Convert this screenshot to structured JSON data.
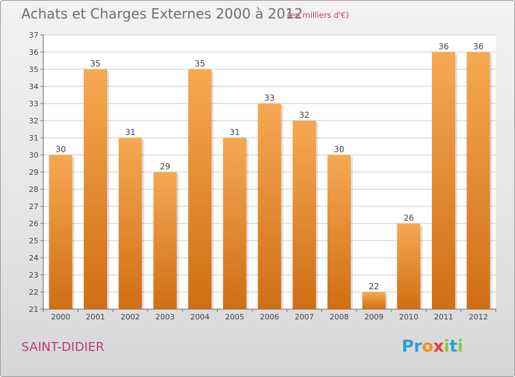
{
  "header": {
    "title": "Achats et Charges Externes 2000 à 2012",
    "subtitle": "(en milliers d'€)"
  },
  "footer": {
    "commune": "SAINT-DIDIER",
    "logo_text": "Proxiti",
    "logo_letters": [
      {
        "char": "P",
        "color": "#2a9fd6"
      },
      {
        "char": "r",
        "color": "#2a9fd6"
      },
      {
        "char": "o",
        "color": "#f28c1b"
      },
      {
        "char": "x",
        "color": "#e63d2f"
      },
      {
        "char": "i",
        "color": "#8dc63f"
      },
      {
        "char": "t",
        "color": "#2a9fd6"
      },
      {
        "char": "i",
        "color": "#8dc63f"
      }
    ]
  },
  "colors": {
    "bar_light": "#f6a952",
    "bar_dark": "#d06e14",
    "grid": "#c8c8c8",
    "accent": "#c0397a"
  },
  "chart_data": {
    "type": "bar",
    "title": "Achats et Charges Externes 2000 à 2012",
    "subtitle": "(en milliers d'€)",
    "categories": [
      "2000",
      "2001",
      "2002",
      "2003",
      "2004",
      "2005",
      "2006",
      "2007",
      "2008",
      "2009",
      "2010",
      "2011",
      "2012"
    ],
    "values": [
      30,
      35,
      31,
      29,
      35,
      31,
      33,
      32,
      30,
      22,
      26,
      36,
      36
    ],
    "ylim": [
      21,
      37
    ],
    "yticks": [
      21,
      22,
      23,
      24,
      25,
      26,
      27,
      28,
      29,
      30,
      31,
      32,
      33,
      34,
      35,
      36,
      37
    ],
    "grid": true,
    "data_labels": true
  }
}
